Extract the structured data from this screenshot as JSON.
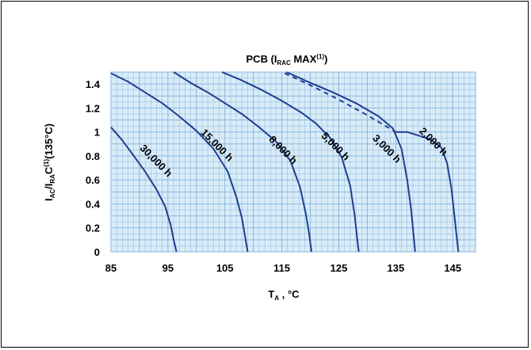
{
  "chart_data": {
    "type": "line",
    "title": "PCB (I",
    "title_sub": "RAC",
    "title_mid": " MAX",
    "title_sup": "(1)",
    "title_end": ")",
    "xlabel": "T",
    "xlabel_sub": "A",
    "xlabel_end": " , °C",
    "ylabel_parts": [
      "I",
      "AC",
      "/I",
      "RA",
      "C",
      "(1)",
      "(135°C)"
    ],
    "xlim": [
      85,
      149
    ],
    "ylim": [
      0,
      1.5
    ],
    "x_ticks": [
      85,
      95,
      105,
      115,
      125,
      135,
      145
    ],
    "y_ticks": [
      0,
      0.2,
      0.4,
      0.6,
      0.8,
      1,
      1.2,
      1.4
    ],
    "y_tick_labels": [
      "0",
      "0.2",
      "0.4",
      "0.6",
      "0.8",
      "1",
      "1.2",
      "1.4"
    ],
    "grid": true,
    "colors": {
      "grid": "#8ab6dc",
      "background": "#d9ecf8",
      "curve": "#1f3d8f"
    },
    "series": [
      {
        "name": "30,000 h",
        "label_at": {
          "x": 92.5,
          "y": 0.74
        },
        "points": [
          [
            85,
            1.04
          ],
          [
            87,
            0.93
          ],
          [
            89,
            0.8
          ],
          [
            91,
            0.67
          ],
          [
            93,
            0.52
          ],
          [
            94.5,
            0.38
          ],
          [
            95.5,
            0.22
          ],
          [
            96,
            0.1
          ],
          [
            96.5,
            0
          ]
        ]
      },
      {
        "name": "15,000 h",
        "label_at": {
          "x": 103.2,
          "y": 0.87
        },
        "points": [
          [
            85,
            1.49
          ],
          [
            88,
            1.42
          ],
          [
            91,
            1.33
          ],
          [
            94,
            1.24
          ],
          [
            97,
            1.13
          ],
          [
            100,
            1.01
          ],
          [
            103,
            0.86
          ],
          [
            105.5,
            0.67
          ],
          [
            107,
            0.46
          ],
          [
            108,
            0.28
          ],
          [
            108.5,
            0.14
          ],
          [
            109,
            0
          ]
        ]
      },
      {
        "name": "8,000 h",
        "label_at": {
          "x": 114.8,
          "y": 0.83
        },
        "points": [
          [
            96,
            1.5
          ],
          [
            99,
            1.41
          ],
          [
            102,
            1.33
          ],
          [
            105,
            1.24
          ],
          [
            108,
            1.15
          ],
          [
            111,
            1.04
          ],
          [
            114,
            0.92
          ],
          [
            116.5,
            0.76
          ],
          [
            118.2,
            0.54
          ],
          [
            119.2,
            0.32
          ],
          [
            119.8,
            0.15
          ],
          [
            120.2,
            0
          ]
        ]
      },
      {
        "name": "5,000 h",
        "label_at": {
          "x": 124.0,
          "y": 0.86
        },
        "points": [
          [
            104.5,
            1.5
          ],
          [
            108,
            1.43
          ],
          [
            111.5,
            1.35
          ],
          [
            115,
            1.26
          ],
          [
            118.5,
            1.16
          ],
          [
            121,
            1.07
          ],
          [
            123.5,
            0.95
          ],
          [
            125.5,
            0.79
          ],
          [
            127,
            0.55
          ],
          [
            127.8,
            0.3
          ],
          [
            128.2,
            0.12
          ],
          [
            128.5,
            0
          ]
        ]
      },
      {
        "name": "3,000 h",
        "label_at": {
          "x": 133.0,
          "y": 0.84
        },
        "points": [
          [
            115.8,
            1.5
          ],
          [
            120,
            1.41
          ],
          [
            124,
            1.33
          ],
          [
            128,
            1.24
          ],
          [
            132,
            1.13
          ],
          [
            134.5,
            1.03
          ],
          [
            136,
            0.86
          ],
          [
            137,
            0.6
          ],
          [
            137.7,
            0.35
          ],
          [
            138.1,
            0.15
          ],
          [
            138.4,
            0
          ]
        ]
      },
      {
        "name": "2,000 h",
        "label_at": {
          "x": 141.2,
          "y": 0.9
        },
        "points": [
          [
            135,
            1.0
          ],
          [
            137,
            1.0
          ],
          [
            139,
            0.97
          ],
          [
            141,
            0.94
          ],
          [
            143,
            0.87
          ],
          [
            144,
            0.74
          ],
          [
            144.8,
            0.52
          ],
          [
            145.3,
            0.3
          ],
          [
            145.7,
            0.12
          ],
          [
            146,
            0
          ]
        ]
      }
    ],
    "limit_line": {
      "style": "dashed",
      "points": [
        [
          115.5,
          1.49
        ],
        [
          120,
          1.39
        ],
        [
          125,
          1.27
        ],
        [
          130,
          1.14
        ],
        [
          135,
          1.0
        ]
      ]
    }
  }
}
